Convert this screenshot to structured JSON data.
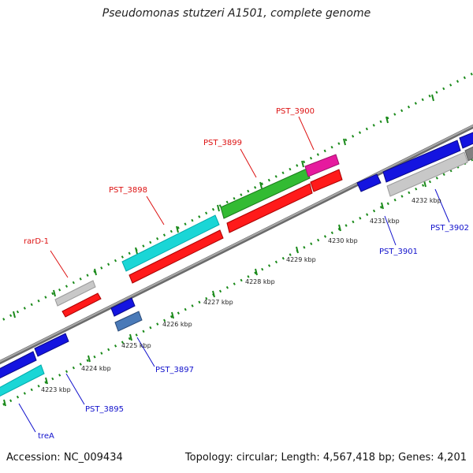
{
  "title": "Pseudomonas stutzeri A1501, complete genome",
  "footer": {
    "accession": "Accession: NC_009434",
    "topology": "Topology: circular; Length: 4,567,418 bp; Genes: 4,201"
  },
  "kbp_labels": [
    "4223 kbp",
    "4224 kbp",
    "4225 kbp",
    "4226 kbp",
    "4227 kbp",
    "4228 kbp",
    "4229 kbp",
    "4230 kbp",
    "4231 kbp",
    "4232 kbp"
  ],
  "gene_labels": {
    "rarD1": "rarD-1",
    "pst3898": "PST_3898",
    "pst3899": "PST_3899",
    "pst3900": "PST_3900",
    "pst3901": "PST_3901",
    "pst3902": "PST_3902",
    "pst3897": "PST_3897",
    "pst3895": "PST_3895",
    "treA": "treA"
  },
  "colors": {
    "backbone": "#8c8c8c",
    "dots": "#1a8a1a",
    "red": "#ff1a1a",
    "blue": "#1414e0",
    "cyan": "#1ad6d6",
    "green": "#33bb33",
    "magenta": "#e61a9e",
    "gray": "#c8c8c8",
    "steelblue": "#4a7ab8",
    "label_red": "#dd1111",
    "label_blue": "#1010cc"
  }
}
